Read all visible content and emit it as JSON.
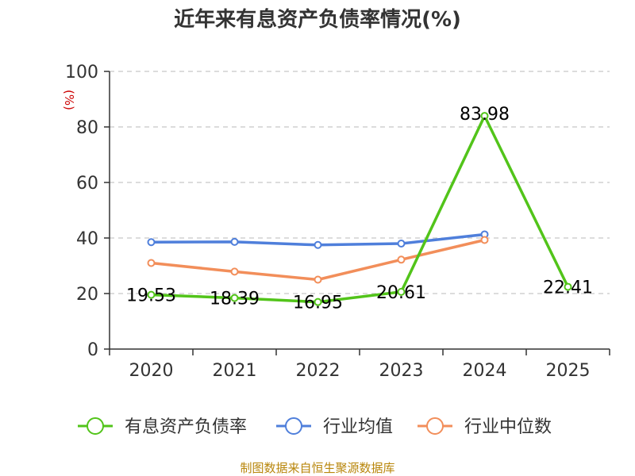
{
  "chart_data": {
    "type": "line",
    "title": "近年来有息资产负债率情况(%)",
    "ylabel": "(%)",
    "xlabel": "",
    "categories": [
      "2020",
      "2021",
      "2022",
      "2023",
      "2024",
      "2025"
    ],
    "ylim": [
      0,
      100
    ],
    "yticks": [
      0,
      20,
      40,
      60,
      80,
      100
    ],
    "grid": true,
    "legend_position": "bottom",
    "series": [
      {
        "name": "有息资产负债率",
        "color": "#52c41a",
        "values": [
          19.53,
          18.39,
          16.95,
          20.61,
          83.98,
          22.41
        ],
        "labels": [
          "19.53",
          "18.39",
          "16.95",
          "20.61",
          "83.98",
          "22.41"
        ]
      },
      {
        "name": "行业均值",
        "color": "#4f7fdb",
        "values": [
          38.5,
          38.6,
          37.5,
          38.0,
          41.3,
          null
        ]
      },
      {
        "name": "行业中位数",
        "color": "#f28e5a",
        "values": [
          31.0,
          27.9,
          25.0,
          32.2,
          39.3,
          null
        ]
      }
    ]
  },
  "source": "制图数据来自恒生聚源数据库"
}
